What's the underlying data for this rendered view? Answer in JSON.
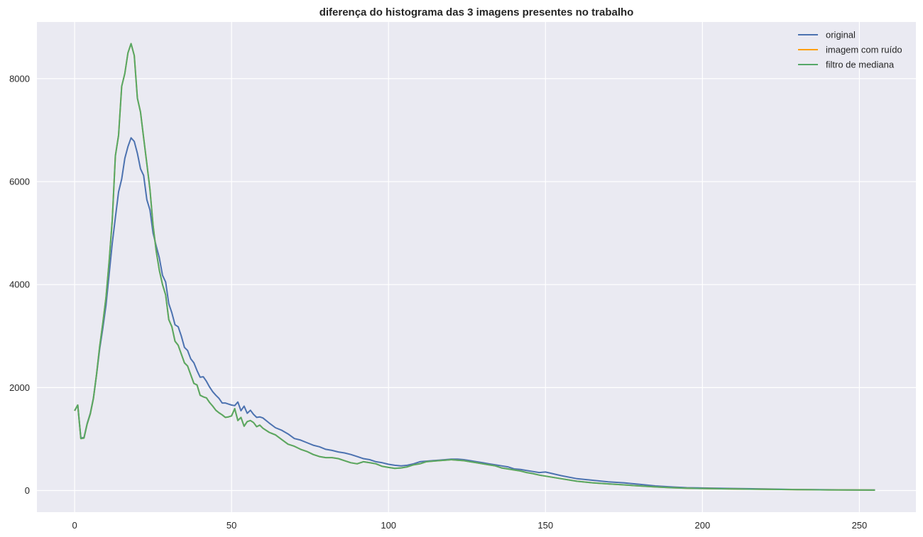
{
  "chart_data": {
    "type": "line",
    "title": "diferença do histograma das 3 imagens presentes no trabalho",
    "xlabel": "",
    "ylabel": "",
    "xlim": [
      -12,
      268
    ],
    "ylim": [
      -420,
      9100
    ],
    "xticks": [
      0,
      50,
      100,
      150,
      200,
      250
    ],
    "yticks": [
      0,
      2000,
      4000,
      6000,
      8000
    ],
    "grid": true,
    "legend_position": "top-right",
    "series": [
      {
        "name": "original",
        "color": "#4c72b0",
        "x": [
          0,
          1,
          2,
          3,
          4,
          5,
          6,
          7,
          8,
          9,
          10,
          11,
          12,
          13,
          14,
          15,
          16,
          17,
          18,
          19,
          20,
          21,
          22,
          23,
          24,
          25,
          26,
          27,
          28,
          29,
          30,
          31,
          32,
          33,
          34,
          35,
          36,
          37,
          38,
          39,
          40,
          41,
          42,
          43,
          44,
          45,
          46,
          47,
          48,
          49,
          50,
          51,
          52,
          53,
          54,
          55,
          56,
          57,
          58,
          59,
          60,
          62,
          64,
          66,
          68,
          70,
          72,
          74,
          76,
          78,
          80,
          82,
          84,
          86,
          88,
          90,
          92,
          94,
          96,
          98,
          100,
          102,
          104,
          106,
          108,
          110,
          112,
          114,
          116,
          118,
          120,
          122,
          124,
          126,
          128,
          130,
          132,
          134,
          136,
          138,
          140,
          142,
          144,
          146,
          148,
          150,
          155,
          160,
          165,
          170,
          175,
          180,
          185,
          190,
          195,
          200,
          210,
          220,
          230,
          240,
          250,
          255
        ],
        "y": [
          1550,
          1660,
          1020,
          1030,
          1300,
          1500,
          1800,
          2250,
          2750,
          3150,
          3600,
          4200,
          4800,
          5300,
          5800,
          6050,
          6450,
          6680,
          6850,
          6780,
          6550,
          6250,
          6120,
          5650,
          5450,
          5000,
          4750,
          4520,
          4180,
          4050,
          3630,
          3450,
          3220,
          3180,
          3000,
          2780,
          2720,
          2560,
          2480,
          2330,
          2200,
          2210,
          2120,
          2010,
          1920,
          1850,
          1790,
          1700,
          1700,
          1680,
          1660,
          1650,
          1720,
          1550,
          1640,
          1500,
          1560,
          1480,
          1420,
          1430,
          1410,
          1310,
          1220,
          1170,
          1100,
          1010,
          980,
          930,
          880,
          850,
          800,
          780,
          750,
          730,
          700,
          660,
          620,
          600,
          560,
          540,
          510,
          490,
          480,
          490,
          520,
          560,
          570,
          580,
          590,
          600,
          610,
          610,
          600,
          580,
          560,
          540,
          520,
          500,
          480,
          460,
          420,
          410,
          390,
          370,
          350,
          360,
          290,
          230,
          200,
          170,
          150,
          120,
          90,
          70,
          55,
          50,
          40,
          30,
          20,
          15,
          10,
          10
        ]
      },
      {
        "name": "imagem com ruído",
        "color": "#ff9f00",
        "x": [
          0,
          1,
          2,
          3,
          4,
          5,
          6,
          7,
          8,
          9,
          10,
          11,
          12,
          13,
          14,
          15,
          16,
          17,
          18,
          19,
          20,
          21,
          22,
          23,
          24,
          25,
          26,
          27,
          28,
          29,
          30,
          31,
          32,
          33,
          34,
          35,
          36,
          37,
          38,
          39,
          40,
          41,
          42,
          43,
          44,
          45,
          46,
          47,
          48,
          49,
          50,
          51,
          52,
          53,
          54,
          55,
          56,
          57,
          58,
          59,
          60,
          62,
          64,
          66,
          68,
          70,
          72,
          74,
          76,
          78,
          80,
          82,
          84,
          86,
          88,
          90,
          92,
          94,
          96,
          98,
          100,
          102,
          104,
          106,
          108,
          110,
          112,
          114,
          116,
          118,
          120,
          122,
          124,
          126,
          128,
          130,
          132,
          134,
          136,
          138,
          140,
          142,
          144,
          146,
          148,
          150,
          155,
          160,
          165,
          170,
          175,
          180,
          185,
          190,
          195,
          200,
          210,
          220,
          230,
          240,
          250,
          255
        ],
        "y": [
          1550,
          1660,
          1010,
          1020,
          1290,
          1490,
          1790,
          2260,
          2800,
          3250,
          3750,
          4450,
          5250,
          6500,
          6900,
          7850,
          8100,
          8500,
          8680,
          8450,
          7620,
          7350,
          6850,
          6350,
          5850,
          5150,
          4650,
          4280,
          4000,
          3800,
          3320,
          3180,
          2900,
          2820,
          2650,
          2480,
          2420,
          2250,
          2080,
          2050,
          1850,
          1820,
          1800,
          1710,
          1640,
          1560,
          1510,
          1470,
          1420,
          1430,
          1450,
          1590,
          1360,
          1420,
          1250,
          1340,
          1360,
          1320,
          1240,
          1270,
          1210,
          1130,
          1080,
          990,
          900,
          860,
          800,
          760,
          700,
          660,
          640,
          640,
          620,
          580,
          540,
          520,
          560,
          540,
          520,
          470,
          450,
          430,
          440,
          460,
          500,
          520,
          560,
          570,
          580,
          590,
          600,
          590,
          580,
          560,
          540,
          520,
          500,
          480,
          440,
          420,
          400,
          380,
          350,
          330,
          300,
          280,
          230,
          180,
          150,
          130,
          110,
          90,
          70,
          55,
          45,
          40,
          30,
          25,
          18,
          12,
          10,
          8
        ]
      },
      {
        "name": "filtro de mediana",
        "color": "#55a868",
        "x": [
          0,
          1,
          2,
          3,
          4,
          5,
          6,
          7,
          8,
          9,
          10,
          11,
          12,
          13,
          14,
          15,
          16,
          17,
          18,
          19,
          20,
          21,
          22,
          23,
          24,
          25,
          26,
          27,
          28,
          29,
          30,
          31,
          32,
          33,
          34,
          35,
          36,
          37,
          38,
          39,
          40,
          41,
          42,
          43,
          44,
          45,
          46,
          47,
          48,
          49,
          50,
          51,
          52,
          53,
          54,
          55,
          56,
          57,
          58,
          59,
          60,
          62,
          64,
          66,
          68,
          70,
          72,
          74,
          76,
          78,
          80,
          82,
          84,
          86,
          88,
          90,
          92,
          94,
          96,
          98,
          100,
          102,
          104,
          106,
          108,
          110,
          112,
          114,
          116,
          118,
          120,
          122,
          124,
          126,
          128,
          130,
          132,
          134,
          136,
          138,
          140,
          142,
          144,
          146,
          148,
          150,
          155,
          160,
          165,
          170,
          175,
          180,
          185,
          190,
          195,
          200,
          210,
          220,
          230,
          240,
          250,
          255
        ],
        "y": [
          1550,
          1660,
          1010,
          1020,
          1290,
          1490,
          1790,
          2260,
          2800,
          3250,
          3750,
          4450,
          5250,
          6500,
          6900,
          7850,
          8100,
          8500,
          8680,
          8450,
          7620,
          7350,
          6850,
          6350,
          5850,
          5150,
          4650,
          4280,
          4000,
          3800,
          3320,
          3180,
          2900,
          2820,
          2650,
          2480,
          2420,
          2250,
          2080,
          2050,
          1850,
          1820,
          1800,
          1710,
          1640,
          1560,
          1510,
          1470,
          1420,
          1430,
          1450,
          1590,
          1360,
          1420,
          1250,
          1340,
          1360,
          1320,
          1240,
          1270,
          1210,
          1130,
          1080,
          990,
          900,
          860,
          800,
          760,
          700,
          660,
          640,
          640,
          620,
          580,
          540,
          520,
          560,
          540,
          520,
          470,
          450,
          430,
          440,
          460,
          500,
          520,
          560,
          570,
          580,
          590,
          600,
          590,
          580,
          560,
          540,
          520,
          500,
          480,
          440,
          420,
          400,
          380,
          350,
          330,
          300,
          280,
          230,
          180,
          150,
          130,
          110,
          90,
          70,
          55,
          45,
          40,
          30,
          25,
          18,
          12,
          10,
          8
        ]
      }
    ]
  }
}
